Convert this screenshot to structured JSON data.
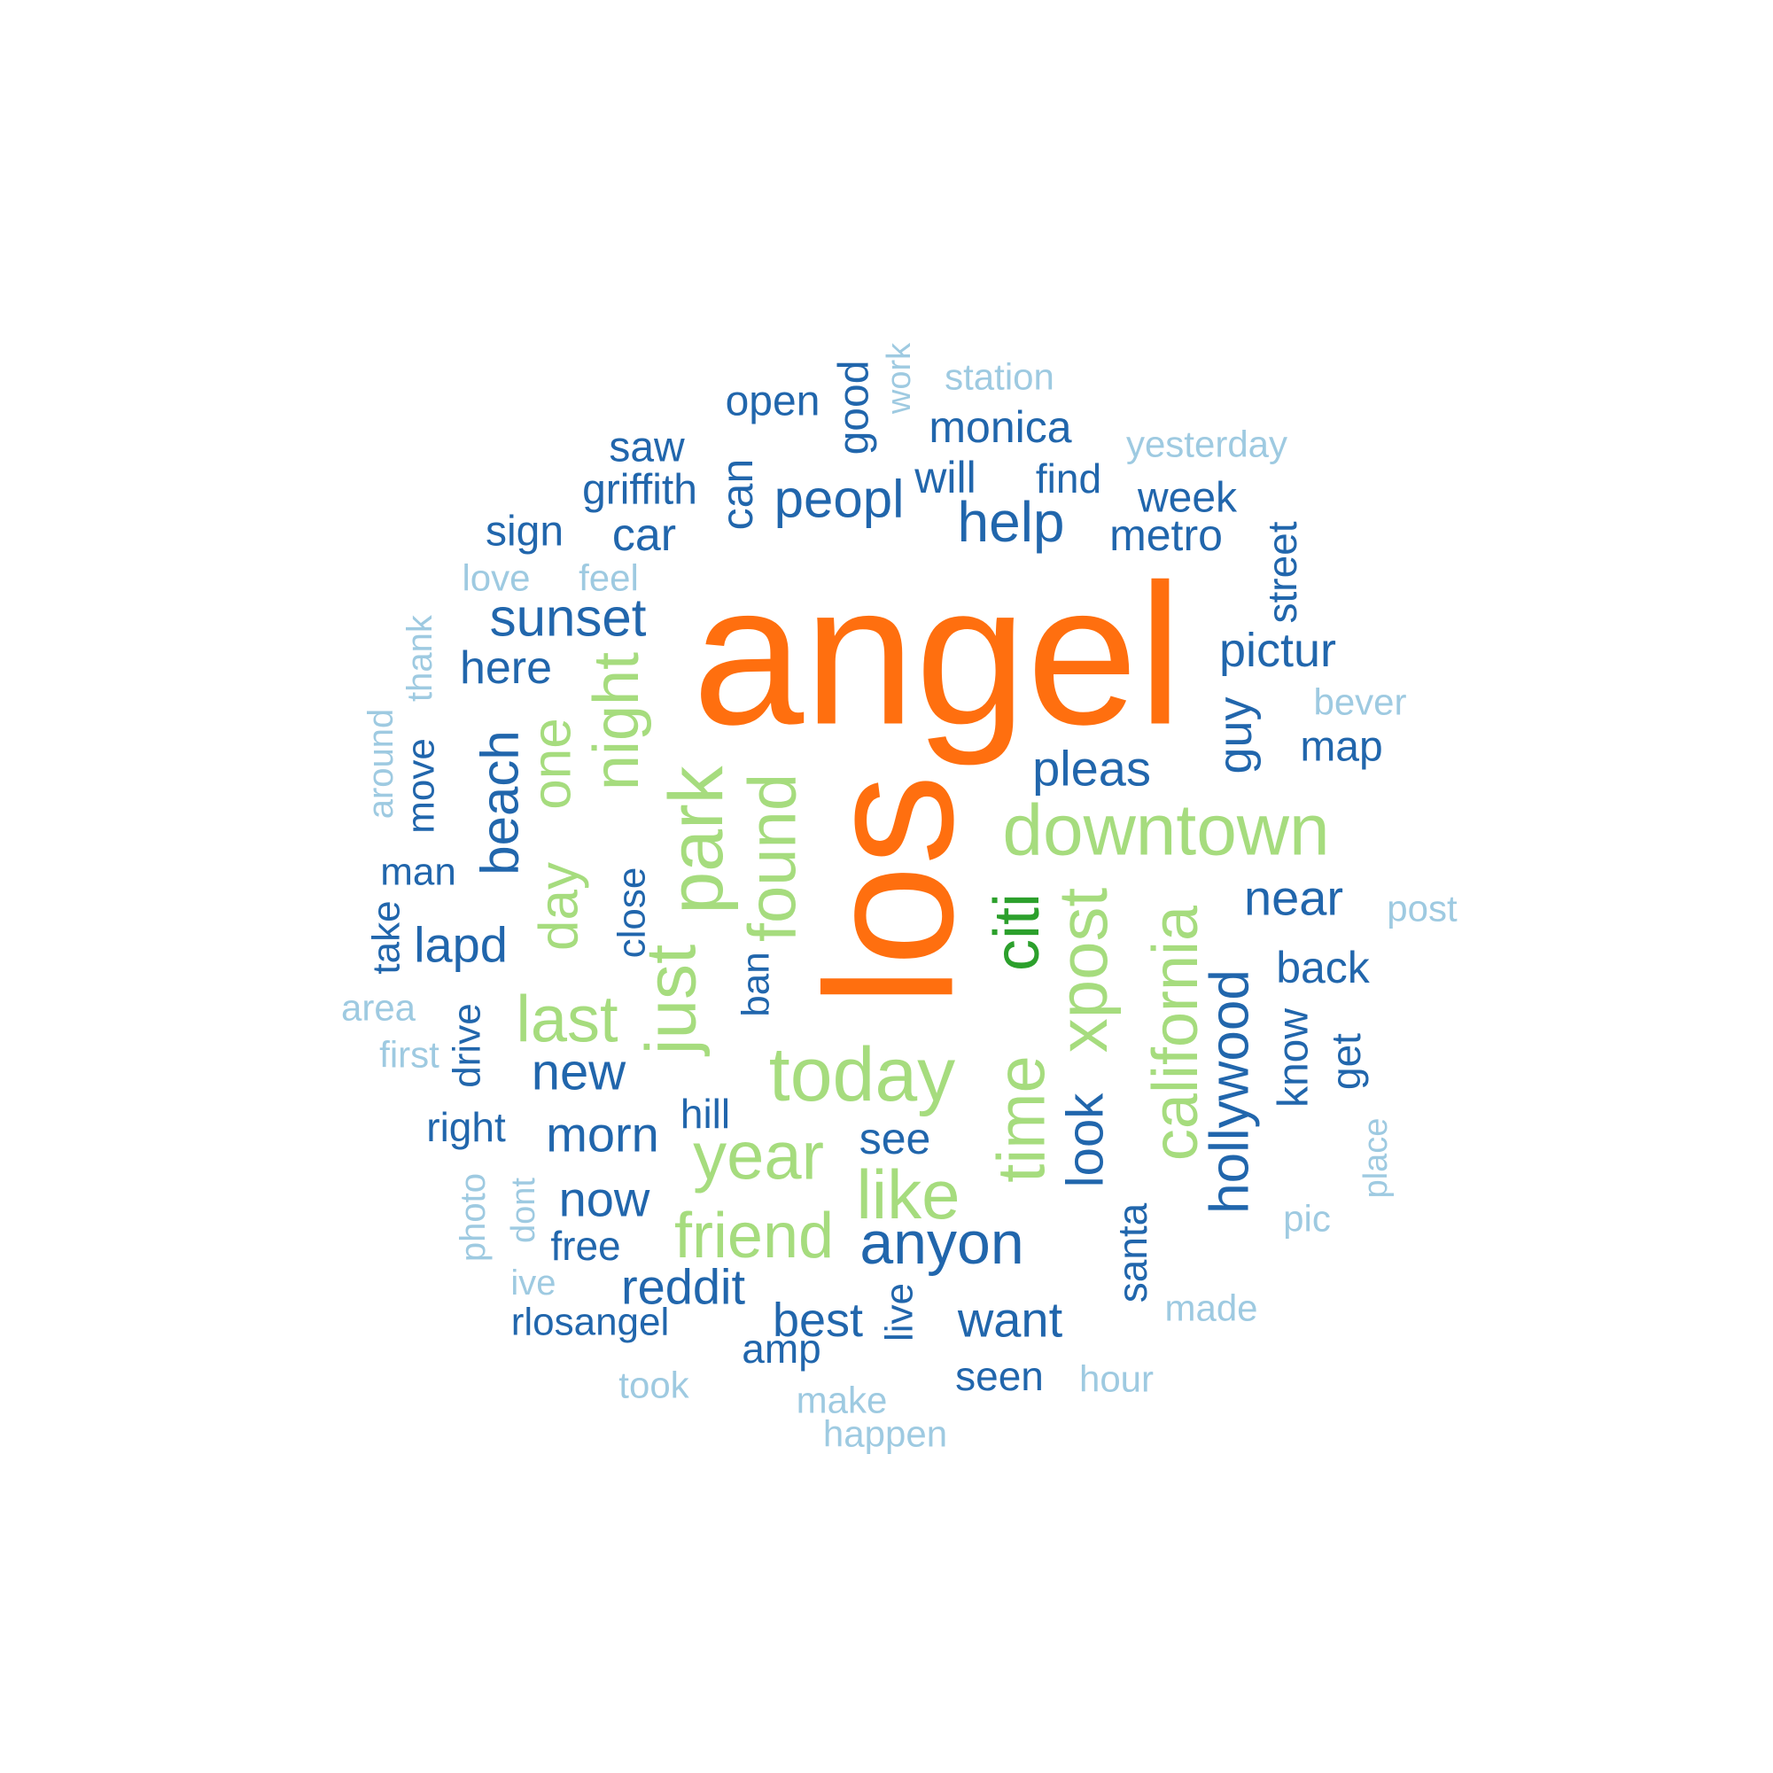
{
  "palette": {
    "c_light": "#9ecae1",
    "c_blue": "#2166ac",
    "c_green_light": "#a6dc7e",
    "c_green": "#2ca02c",
    "c_orange": "#ff6f0f"
  },
  "words": [
    {
      "text": "angel",
      "color": "c_orange"
    },
    {
      "text": "los",
      "color": "c_orange"
    },
    {
      "text": "downtown",
      "color": "c_green_light"
    },
    {
      "text": "today",
      "color": "c_green_light"
    },
    {
      "text": "park",
      "color": "c_green_light"
    },
    {
      "text": "just",
      "color": "c_green_light"
    },
    {
      "text": "found",
      "color": "c_green_light"
    },
    {
      "text": "night",
      "color": "c_green_light"
    },
    {
      "text": "one",
      "color": "c_green_light"
    },
    {
      "text": "day",
      "color": "c_green_light"
    },
    {
      "text": "last",
      "color": "c_green_light"
    },
    {
      "text": "year",
      "color": "c_green_light"
    },
    {
      "text": "like",
      "color": "c_green_light"
    },
    {
      "text": "friend",
      "color": "c_green_light"
    },
    {
      "text": "time",
      "color": "c_green_light"
    },
    {
      "text": "xpost",
      "color": "c_green_light"
    },
    {
      "text": "california",
      "color": "c_green_light"
    },
    {
      "text": "citi",
      "color": "c_green"
    },
    {
      "text": "look",
      "color": "c_blue"
    },
    {
      "text": "hollywood",
      "color": "c_blue"
    },
    {
      "text": "anyon",
      "color": "c_blue"
    },
    {
      "text": "help",
      "color": "c_blue"
    },
    {
      "text": "peopl",
      "color": "c_blue"
    },
    {
      "text": "sunset",
      "color": "c_blue"
    },
    {
      "text": "beach",
      "color": "c_blue"
    },
    {
      "text": "pleas",
      "color": "c_blue"
    },
    {
      "text": "guy",
      "color": "c_blue"
    },
    {
      "text": "pictur",
      "color": "c_blue"
    },
    {
      "text": "near",
      "color": "c_blue"
    },
    {
      "text": "new",
      "color": "c_blue"
    },
    {
      "text": "morn",
      "color": "c_blue"
    },
    {
      "text": "now",
      "color": "c_blue"
    },
    {
      "text": "reddit",
      "color": "c_blue"
    },
    {
      "text": "best",
      "color": "c_blue"
    },
    {
      "text": "want",
      "color": "c_blue"
    },
    {
      "text": "lapd",
      "color": "c_blue"
    },
    {
      "text": "here",
      "color": "c_blue"
    },
    {
      "text": "car",
      "color": "c_blue"
    },
    {
      "text": "monica",
      "color": "c_blue"
    },
    {
      "text": "metro",
      "color": "c_blue"
    },
    {
      "text": "will",
      "color": "c_blue"
    },
    {
      "text": "week",
      "color": "c_blue"
    },
    {
      "text": "open",
      "color": "c_blue"
    },
    {
      "text": "saw",
      "color": "c_blue"
    },
    {
      "text": "griffith",
      "color": "c_blue"
    },
    {
      "text": "sign",
      "color": "c_blue"
    },
    {
      "text": "can",
      "color": "c_blue"
    },
    {
      "text": "good",
      "color": "c_blue"
    },
    {
      "text": "find",
      "color": "c_blue"
    },
    {
      "text": "street",
      "color": "c_blue"
    },
    {
      "text": "map",
      "color": "c_blue"
    },
    {
      "text": "back",
      "color": "c_blue"
    },
    {
      "text": "know",
      "color": "c_blue"
    },
    {
      "text": "get",
      "color": "c_blue"
    },
    {
      "text": "santa",
      "color": "c_blue"
    },
    {
      "text": "see",
      "color": "c_blue"
    },
    {
      "text": "hill",
      "color": "c_blue"
    },
    {
      "text": "ban",
      "color": "c_blue"
    },
    {
      "text": "close",
      "color": "c_blue"
    },
    {
      "text": "drive",
      "color": "c_blue"
    },
    {
      "text": "right",
      "color": "c_blue"
    },
    {
      "text": "free",
      "color": "c_blue"
    },
    {
      "text": "rlosangel",
      "color": "c_blue"
    },
    {
      "text": "amp",
      "color": "c_blue"
    },
    {
      "text": "live",
      "color": "c_blue"
    },
    {
      "text": "seen",
      "color": "c_blue"
    },
    {
      "text": "man",
      "color": "c_blue"
    },
    {
      "text": "move",
      "color": "c_blue"
    },
    {
      "text": "take",
      "color": "c_blue"
    },
    {
      "text": "station",
      "color": "c_light"
    },
    {
      "text": "work",
      "color": "c_light"
    },
    {
      "text": "yesterday",
      "color": "c_light"
    },
    {
      "text": "love",
      "color": "c_light"
    },
    {
      "text": "feel",
      "color": "c_light"
    },
    {
      "text": "thank",
      "color": "c_light"
    },
    {
      "text": "around",
      "color": "c_light"
    },
    {
      "text": "bever",
      "color": "c_light"
    },
    {
      "text": "post",
      "color": "c_light"
    },
    {
      "text": "area",
      "color": "c_light"
    },
    {
      "text": "first",
      "color": "c_light"
    },
    {
      "text": "place",
      "color": "c_light"
    },
    {
      "text": "pic",
      "color": "c_light"
    },
    {
      "text": "made",
      "color": "c_light"
    },
    {
      "text": "hour",
      "color": "c_light"
    },
    {
      "text": "photo",
      "color": "c_light"
    },
    {
      "text": "dont",
      "color": "c_light"
    },
    {
      "text": "ive",
      "color": "c_light"
    },
    {
      "text": "took",
      "color": "c_light"
    },
    {
      "text": "make",
      "color": "c_light"
    },
    {
      "text": "happen",
      "color": "c_light"
    }
  ]
}
